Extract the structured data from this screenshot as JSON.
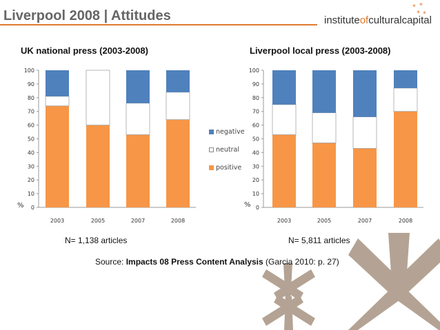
{
  "slide_title": "Liverpool 2008 | Attitudes",
  "brand": {
    "part1": "institute",
    "part2": "of",
    "part3": "culturalcapital"
  },
  "source": {
    "prefix": "Source: ",
    "bold": "Impacts 08 Press Content Analysis",
    "suffix": " (Garcia 2010: p. 27)"
  },
  "colors": {
    "positive": "#f79646",
    "neutral": "#ffffff",
    "negative": "#4f81bd",
    "accent": "#e07a2f",
    "asterisk": "#b4a394"
  },
  "chart_data": [
    {
      "type": "bar",
      "stacked": true,
      "title": "UK national press (2003-2008)",
      "note": "N= 1,138 articles",
      "ylabel": "%",
      "ylim": [
        0,
        100
      ],
      "yticks": [
        0,
        10,
        20,
        30,
        40,
        50,
        60,
        70,
        80,
        90,
        100
      ],
      "categories": [
        "2003",
        "2005",
        "2007",
        "2008"
      ],
      "legend_position": "right",
      "series": [
        {
          "name": "positive",
          "values": [
            74,
            60,
            53,
            64
          ]
        },
        {
          "name": "neutral",
          "values": [
            7,
            40,
            23,
            20
          ]
        },
        {
          "name": "negative",
          "values": [
            19,
            0,
            24,
            16
          ]
        }
      ]
    },
    {
      "type": "bar",
      "stacked": true,
      "title": "Liverpool local press (2003-2008)",
      "note": "N= 5,811 articles",
      "ylabel": "%",
      "ylim": [
        0,
        100
      ],
      "yticks": [
        0,
        10,
        20,
        30,
        40,
        50,
        60,
        70,
        80,
        90,
        100
      ],
      "categories": [
        "2003",
        "2005",
        "2007",
        "2008"
      ],
      "series": [
        {
          "name": "positive",
          "values": [
            53,
            47,
            43,
            70
          ]
        },
        {
          "name": "neutral",
          "values": [
            22,
            22,
            23,
            17
          ]
        },
        {
          "name": "negative",
          "values": [
            25,
            31,
            34,
            13
          ]
        }
      ]
    }
  ]
}
